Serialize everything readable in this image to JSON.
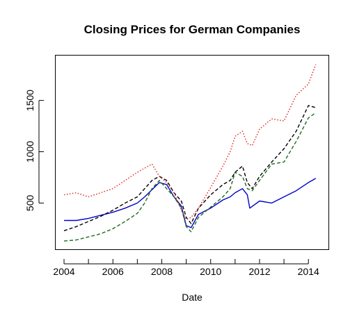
{
  "chart_data": {
    "type": "line",
    "title": "Closing Prices for German Companies",
    "xlabel": "Date",
    "ylabel": "",
    "xlim": [
      2004.0,
      2014.45
    ],
    "ylim": [
      90,
      1890
    ],
    "x_ticks": [
      2004,
      2006,
      2008,
      2010,
      2012,
      2014
    ],
    "x_tick_labels": [
      "2004",
      "2006",
      "2008",
      "2010",
      "2012",
      "2014"
    ],
    "x_minor_ticks": [
      2005,
      2007,
      2009,
      2011,
      2013
    ],
    "y_ticks": [
      500,
      1000,
      1500
    ],
    "y_tick_labels": [
      "500",
      "1000",
      "1500"
    ],
    "grid": false,
    "legend": "none",
    "series": [
      {
        "color": "#0000cd",
        "line_style": "solid",
        "x": [
          2004.0,
          2004.5,
          2005.0,
          2005.5,
          2006.0,
          2006.5,
          2007.0,
          2007.3,
          2007.6,
          2007.9,
          2008.2,
          2008.5,
          2008.8,
          2009.0,
          2009.2,
          2009.5,
          2010.0,
          2010.5,
          2010.8,
          2011.0,
          2011.3,
          2011.5,
          2011.6,
          2012.0,
          2012.5,
          2013.0,
          2013.5,
          2014.0,
          2014.3
        ],
        "y": [
          330,
          330,
          350,
          380,
          410,
          450,
          500,
          560,
          630,
          700,
          680,
          560,
          470,
          280,
          260,
          390,
          450,
          530,
          560,
          600,
          640,
          580,
          450,
          520,
          500,
          560,
          620,
          700,
          740
        ]
      },
      {
        "color": "#000000",
        "line_style": "dashed",
        "x": [
          2004.0,
          2004.5,
          2005.0,
          2005.5,
          2006.0,
          2006.5,
          2007.0,
          2007.3,
          2007.6,
          2007.9,
          2008.2,
          2008.5,
          2008.8,
          2009.0,
          2009.2,
          2009.5,
          2010.0,
          2010.5,
          2010.8,
          2011.0,
          2011.3,
          2011.5,
          2011.7,
          2012.0,
          2012.5,
          2013.0,
          2013.5,
          2014.0,
          2014.3
        ],
        "y": [
          230,
          270,
          320,
          370,
          430,
          500,
          560,
          640,
          720,
          760,
          720,
          600,
          520,
          360,
          300,
          450,
          580,
          680,
          720,
          800,
          860,
          700,
          640,
          760,
          900,
          1030,
          1200,
          1450,
          1430
        ]
      },
      {
        "color": "#1c6b1c",
        "line_style": "dashed",
        "x": [
          2004.0,
          2004.5,
          2005.0,
          2005.5,
          2006.0,
          2006.5,
          2007.0,
          2007.3,
          2007.6,
          2007.9,
          2008.2,
          2008.5,
          2008.8,
          2009.0,
          2009.2,
          2009.5,
          2010.0,
          2010.5,
          2010.8,
          2011.0,
          2011.3,
          2011.5,
          2011.7,
          2012.0,
          2012.5,
          2013.0,
          2013.5,
          2014.0,
          2014.3
        ],
        "y": [
          130,
          140,
          170,
          200,
          250,
          320,
          400,
          500,
          640,
          720,
          640,
          560,
          450,
          270,
          220,
          360,
          460,
          560,
          640,
          800,
          760,
          640,
          620,
          720,
          880,
          900,
          1100,
          1330,
          1380
        ]
      },
      {
        "color": "#e0201b",
        "line_style": "dotted",
        "x": [
          2004.0,
          2004.5,
          2005.0,
          2005.5,
          2006.0,
          2006.5,
          2007.0,
          2007.3,
          2007.6,
          2007.9,
          2008.2,
          2008.5,
          2008.8,
          2009.0,
          2009.2,
          2009.5,
          2010.0,
          2010.5,
          2010.8,
          2011.0,
          2011.3,
          2011.5,
          2011.7,
          2012.0,
          2012.5,
          2013.0,
          2013.5,
          2014.0,
          2014.3
        ],
        "y": [
          580,
          600,
          560,
          600,
          640,
          720,
          800,
          840,
          880,
          760,
          700,
          600,
          430,
          340,
          360,
          450,
          650,
          860,
          1000,
          1150,
          1200,
          1080,
          1060,
          1220,
          1320,
          1300,
          1550,
          1660,
          1850
        ]
      }
    ]
  }
}
